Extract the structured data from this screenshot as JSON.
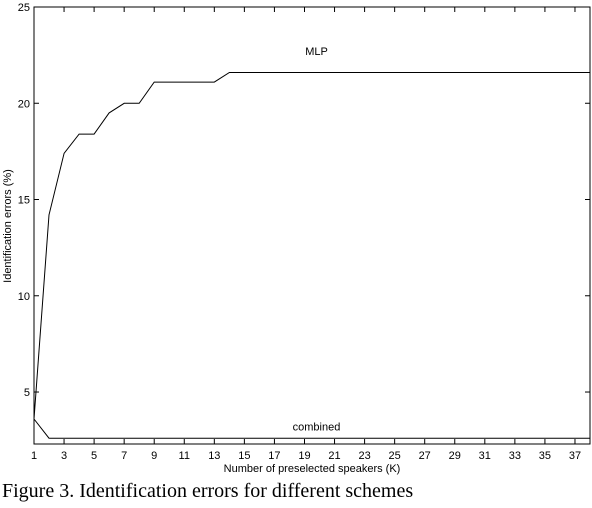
{
  "caption": "Figure 3. Identification errors for different schemes",
  "chart_data": {
    "type": "line",
    "title": "",
    "xlabel": "Number of preselected speakers (K)",
    "ylabel": "Identification errors (%)",
    "xlim": [
      1,
      38
    ],
    "ylim": [
      2.3,
      25
    ],
    "xticks": [
      1,
      3,
      5,
      7,
      9,
      11,
      13,
      15,
      17,
      19,
      21,
      23,
      25,
      27,
      29,
      31,
      33,
      35,
      37
    ],
    "yticks": [
      5,
      10,
      15,
      20,
      25
    ],
    "grid": false,
    "legend": "none",
    "series": [
      {
        "name": "MLP",
        "x": [
          1,
          2,
          3,
          4,
          5,
          6,
          7,
          8,
          9,
          10,
          11,
          12,
          13,
          14,
          15,
          20,
          25,
          30,
          35,
          38
        ],
        "values": [
          3.6,
          14.2,
          17.4,
          18.4,
          18.4,
          19.5,
          20.0,
          20.0,
          21.1,
          21.1,
          21.1,
          21.1,
          21.1,
          21.6,
          21.6,
          21.6,
          21.6,
          21.6,
          21.6,
          21.6
        ]
      },
      {
        "name": "combined",
        "x": [
          1,
          2,
          3,
          5,
          10,
          15,
          20,
          25,
          30,
          35,
          38
        ],
        "values": [
          3.6,
          2.6,
          2.6,
          2.6,
          2.6,
          2.6,
          2.6,
          2.6,
          2.6,
          2.6,
          2.6
        ]
      }
    ],
    "annotations": [
      {
        "text": "MLP",
        "x": 19.8,
        "y": 22.5
      },
      {
        "text": "combined",
        "x": 19.8,
        "y": 3.0
      }
    ]
  }
}
